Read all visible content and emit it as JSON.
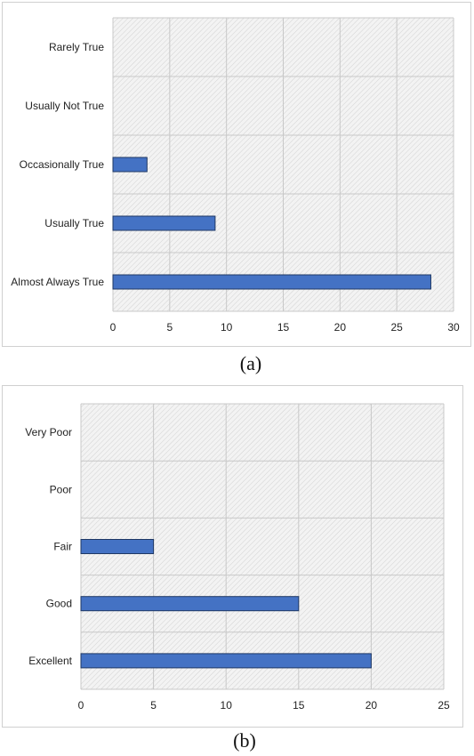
{
  "captions": [
    "(a)",
    "(b)"
  ],
  "colors": {
    "bar_fill": "#4472c4",
    "bar_stroke": "#1f3864",
    "grid": "#c8c8c8",
    "plot_background": "#f4f4f4"
  },
  "chart_data": [
    {
      "type": "bar",
      "orientation": "horizontal",
      "categories": [
        "Rarely True",
        "Usually Not True",
        "Occasionally True",
        "Usually True",
        "Almost Always True"
      ],
      "values": [
        0,
        0,
        3,
        9,
        28
      ],
      "xlim": [
        0,
        30
      ],
      "xticks": [
        0,
        5,
        10,
        15,
        20,
        25,
        30
      ],
      "grid": true,
      "legend": "none"
    },
    {
      "type": "bar",
      "orientation": "horizontal",
      "categories": [
        "Very Poor",
        "Poor",
        "Fair",
        "Good",
        "Excellent"
      ],
      "values": [
        0,
        0,
        5,
        15,
        20
      ],
      "xlim": [
        0,
        25
      ],
      "xticks": [
        0,
        5,
        10,
        15,
        20,
        25
      ],
      "grid": true,
      "legend": "none"
    }
  ]
}
